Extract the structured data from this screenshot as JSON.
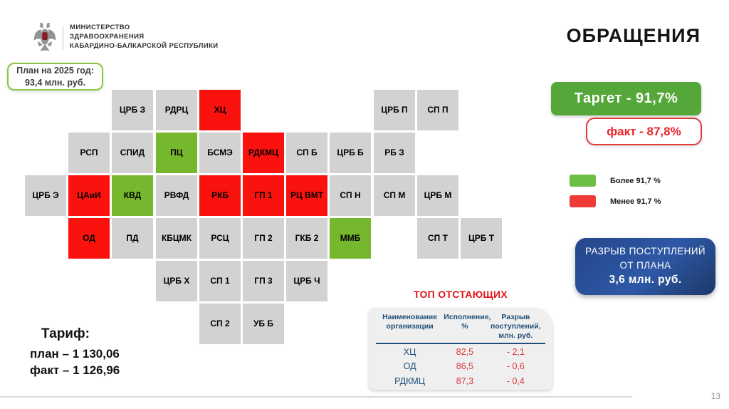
{
  "header": {
    "ministry_lines": [
      "МИНИСТЕРСТВО",
      "ЗДРАВООХРАНЕНИЯ",
      "КАБАРДИНО-БАЛКАРСКОЙ РЕСПУБЛИКИ"
    ],
    "title": "ОБРАЩЕНИЯ"
  },
  "plan_box": {
    "line1": "План на 2025 год:",
    "line2": "93,4 млн. руб."
  },
  "grid": {
    "tiles": [
      {
        "label": "ЦРБ З",
        "col": 2,
        "row": 0,
        "status": "gray"
      },
      {
        "label": "РДРЦ",
        "col": 3,
        "row": 0,
        "status": "gray"
      },
      {
        "label": "ХЦ",
        "col": 4,
        "row": 0,
        "status": "red"
      },
      {
        "label": "ЦРБ П",
        "col": 8,
        "row": 0,
        "status": "gray"
      },
      {
        "label": "СП П",
        "col": 9,
        "row": 0,
        "status": "gray"
      },
      {
        "label": "РСП",
        "col": 1,
        "row": 1,
        "status": "gray"
      },
      {
        "label": "СПИД",
        "col": 2,
        "row": 1,
        "status": "gray"
      },
      {
        "label": "ПЦ",
        "col": 3,
        "row": 1,
        "status": "green"
      },
      {
        "label": "БСМЭ",
        "col": 4,
        "row": 1,
        "status": "gray"
      },
      {
        "label": "РДКМЦ",
        "col": 5,
        "row": 1,
        "status": "red"
      },
      {
        "label": "СП Б",
        "col": 6,
        "row": 1,
        "status": "gray"
      },
      {
        "label": "ЦРБ Б",
        "col": 7,
        "row": 1,
        "status": "gray"
      },
      {
        "label": "РБ З",
        "col": 8,
        "row": 1,
        "status": "gray"
      },
      {
        "label": "ЦРБ Э",
        "col": 0,
        "row": 2,
        "status": "gray"
      },
      {
        "label": "ЦАиИ",
        "col": 1,
        "row": 2,
        "status": "red"
      },
      {
        "label": "КВД",
        "col": 2,
        "row": 2,
        "status": "green"
      },
      {
        "label": "РВФД",
        "col": 3,
        "row": 2,
        "status": "gray"
      },
      {
        "label": "РКБ",
        "col": 4,
        "row": 2,
        "status": "red"
      },
      {
        "label": "ГП 1",
        "col": 5,
        "row": 2,
        "status": "red"
      },
      {
        "label": "РЦ ВМТ",
        "col": 6,
        "row": 2,
        "status": "red"
      },
      {
        "label": "СП Н",
        "col": 7,
        "row": 2,
        "status": "gray"
      },
      {
        "label": "СП М",
        "col": 8,
        "row": 2,
        "status": "gray"
      },
      {
        "label": "ЦРБ М",
        "col": 9,
        "row": 2,
        "status": "gray"
      },
      {
        "label": "ОД",
        "col": 1,
        "row": 3,
        "status": "red"
      },
      {
        "label": "ПД",
        "col": 2,
        "row": 3,
        "status": "gray"
      },
      {
        "label": "КБЦМК",
        "col": 3,
        "row": 3,
        "status": "gray"
      },
      {
        "label": "РСЦ",
        "col": 4,
        "row": 3,
        "status": "gray"
      },
      {
        "label": "ГП 2",
        "col": 5,
        "row": 3,
        "status": "gray"
      },
      {
        "label": "ГКБ 2",
        "col": 6,
        "row": 3,
        "status": "gray"
      },
      {
        "label": "ММБ",
        "col": 7,
        "row": 3,
        "status": "green"
      },
      {
        "label": "СП Т",
        "col": 9,
        "row": 3,
        "status": "gray"
      },
      {
        "label": "ЦРБ Т",
        "col": 10,
        "row": 3,
        "status": "gray"
      },
      {
        "label": "ЦРБ Х",
        "col": 3,
        "row": 4,
        "status": "gray"
      },
      {
        "label": "СП 1",
        "col": 4,
        "row": 4,
        "status": "gray"
      },
      {
        "label": "ГП 3",
        "col": 5,
        "row": 4,
        "status": "gray"
      },
      {
        "label": "ЦРБ Ч",
        "col": 6,
        "row": 4,
        "status": "gray"
      },
      {
        "label": "СП 2",
        "col": 4,
        "row": 5,
        "status": "gray"
      },
      {
        "label": "УБ Б",
        "col": 5,
        "row": 5,
        "status": "gray"
      }
    ]
  },
  "target": {
    "label": "Таргет  -  91,7%"
  },
  "fact": {
    "label": "факт  - 87,8%"
  },
  "legend": [
    {
      "label": "Более 91,7 %",
      "color": "#6cbe46"
    },
    {
      "label": "Менее 91,7 %",
      "color": "#ee3b38"
    }
  ],
  "gap_box": {
    "line1": "РАЗРЫВ ПОСТУПЛЕНИЙ",
    "line2": "ОТ ПЛАНА",
    "value": "3,6 млн. руб."
  },
  "tariff": {
    "title": "Тариф:",
    "plan": "план – 1 130,06",
    "fact": "факт – 1 126,96"
  },
  "laggards": {
    "title": "ТОП ОТСТАЮЩИХ",
    "headers": [
      "Наименование организации",
      "Исполнение, %",
      "Разрыв поступлений, млн. руб."
    ],
    "rows": [
      {
        "name": "ХЦ",
        "exec": "82,5",
        "gap": "- 2,1"
      },
      {
        "name": "ОД",
        "exec": "86,5",
        "gap": "- 0,6"
      },
      {
        "name": "РДКМЦ",
        "exec": "87,3",
        "gap": "- 0,4"
      }
    ]
  },
  "colors": {
    "tile_gray": "#d2d2d2",
    "tile_red": "#fa120e",
    "tile_green": "#76b82d",
    "target_green": "#54a738",
    "fact_red": "#e8262b",
    "table_blue": "#1f4e79",
    "value_red": "#d6393f",
    "gap_blue_dark": "#1c3869",
    "gap_blue_light": "#2e58a6"
  },
  "footer": {
    "page_number": "13"
  }
}
